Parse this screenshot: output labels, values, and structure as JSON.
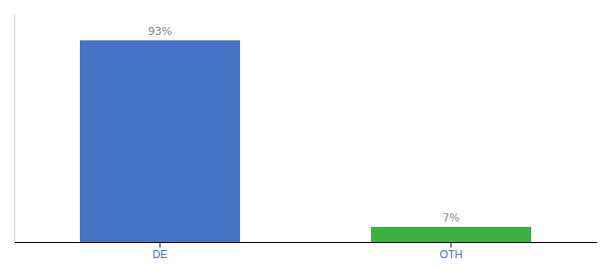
{
  "chart_data": {
    "type": "bar",
    "categories": [
      "DE",
      "OTH"
    ],
    "values": [
      93,
      7
    ],
    "value_labels": [
      "93%",
      "7%"
    ],
    "colors": [
      "#4472c4",
      "#3cb043"
    ],
    "data_labels": true,
    "ylim": [
      0,
      105
    ],
    "tick_labels": "x",
    "grid": false
  }
}
